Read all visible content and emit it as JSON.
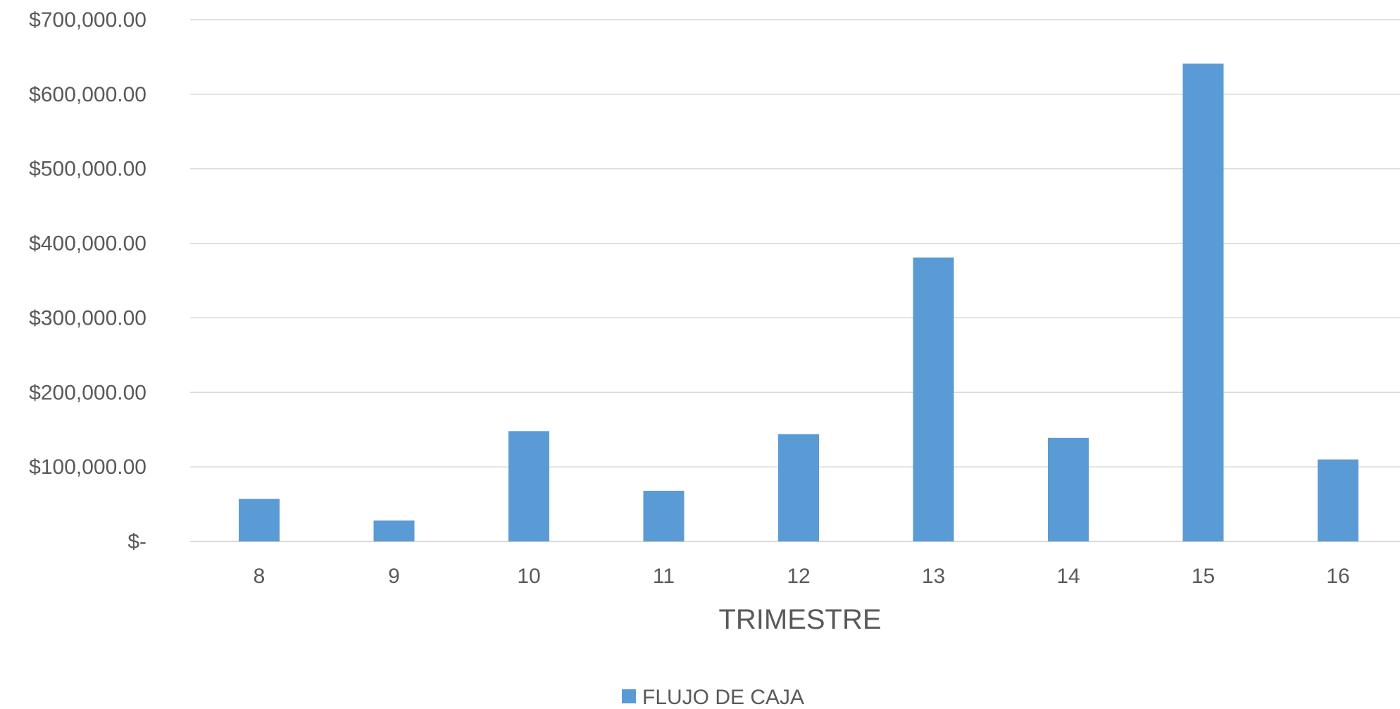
{
  "chart_data": {
    "type": "bar",
    "categories": [
      "8",
      "9",
      "10",
      "11",
      "12",
      "13",
      "14",
      "15",
      "16"
    ],
    "series": [
      {
        "name": "FLUJO DE CAJA",
        "color": "#5b9bd5",
        "values": [
          57000,
          28000,
          148000,
          68000,
          144000,
          381000,
          139000,
          641000,
          110000
        ]
      }
    ],
    "title": "",
    "xlabel": "TRIMESTRE",
    "ylabel": "",
    "ylim": [
      0,
      700000
    ],
    "y_ticks": [
      0,
      100000,
      200000,
      300000,
      400000,
      500000,
      600000,
      700000
    ],
    "y_tick_labels": [
      "$-",
      "$100,000.00",
      "$200,000.00",
      "$300,000.00",
      "$400,000.00",
      "$500,000.00",
      "$600,000.00",
      "$700,000.00"
    ],
    "grid": true,
    "legend": "bottom-center",
    "colors": {
      "axis_text": "#595959",
      "grid": "#d9d9d9"
    }
  }
}
